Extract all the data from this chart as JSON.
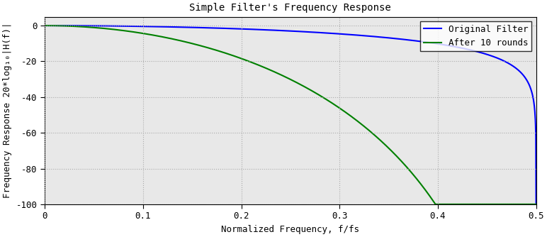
{
  "title": "Simple Filter's Frequency Response",
  "xlabel": "Normalized Frequency, f/fs",
  "ylabel": "Frequency Response 20*log₁₀|H(f)|",
  "xlim": [
    0,
    0.5
  ],
  "ylim": [
    -100,
    5
  ],
  "yticks": [
    0,
    -20,
    -40,
    -60,
    -80,
    -100
  ],
  "xticks": [
    0,
    0.1,
    0.2,
    0.3,
    0.4,
    0.5
  ],
  "color_original": "#0000ff",
  "color_after": "#008000",
  "legend_original": "Original Filter",
  "legend_after": "After 10 rounds",
  "n_points": 2000,
  "n_rounds": 10,
  "background_color": "#ffffff",
  "plot_bg_color": "#e8e8e8",
  "grid_color": "#aaaaaa",
  "title_fontsize": 10,
  "label_fontsize": 9,
  "tick_fontsize": 9,
  "legend_fontsize": 9,
  "line_width": 1.5,
  "fig_width": 7.72,
  "fig_height": 3.34,
  "fig_dpi": 100
}
